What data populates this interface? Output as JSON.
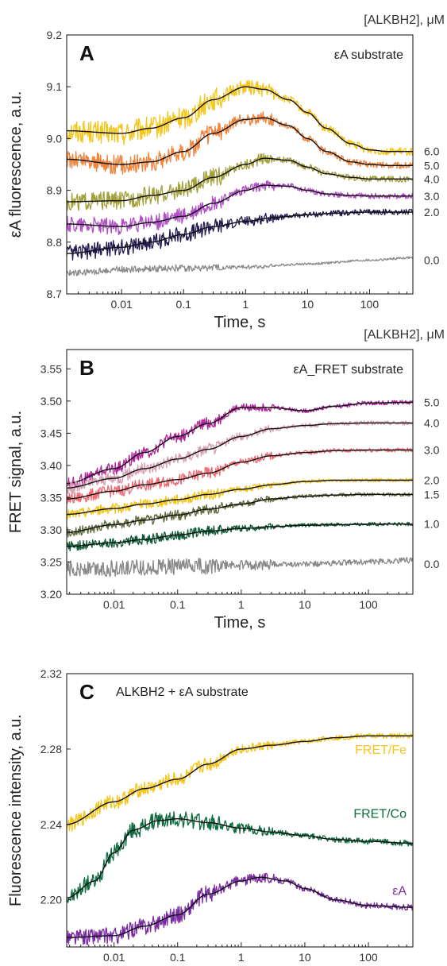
{
  "chart_data": [
    {
      "type": "line",
      "panel": "A",
      "subtitle": "εA substrate",
      "legend_header": "[ALKBH2], μM",
      "xlabel": "Time, s",
      "ylabel": "εA fluorescence, a.u.",
      "xscale": "log",
      "xlim": [
        0.0013,
        500
      ],
      "ylim": [
        8.7,
        9.2
      ],
      "xticks": [
        "0.01",
        "0.1",
        "1",
        "10",
        "100"
      ],
      "yticks": [
        "8.7",
        "8.8",
        "8.9",
        "9.0",
        "9.1",
        "9.2"
      ],
      "series": [
        {
          "name": "6.0",
          "color": "#f5c518",
          "label_y": 8.975,
          "noise": 0.014,
          "points": [
            [
              0.0013,
              9.015
            ],
            [
              0.01,
              9.01
            ],
            [
              0.03,
              9.02
            ],
            [
              0.1,
              9.04
            ],
            [
              0.3,
              9.075
            ],
            [
              1,
              9.1
            ],
            [
              2,
              9.095
            ],
            [
              5,
              9.075
            ],
            [
              10,
              9.05
            ],
            [
              20,
              9.02
            ],
            [
              50,
              8.99
            ],
            [
              100,
              8.978
            ],
            [
              200,
              8.975
            ],
            [
              500,
              8.975
            ]
          ]
        },
        {
          "name": "5.0",
          "color": "#f0843c",
          "label_y": 8.948,
          "noise": 0.012,
          "points": [
            [
              0.0013,
              8.96
            ],
            [
              0.01,
              8.95
            ],
            [
              0.03,
              8.955
            ],
            [
              0.1,
              8.975
            ],
            [
              0.3,
              9.01
            ],
            [
              1,
              9.037
            ],
            [
              2,
              9.04
            ],
            [
              5,
              9.025
            ],
            [
              10,
              9.0
            ],
            [
              20,
              8.975
            ],
            [
              50,
              8.955
            ],
            [
              100,
              8.95
            ],
            [
              200,
              8.948
            ],
            [
              500,
              8.948
            ]
          ]
        },
        {
          "name": "4.0",
          "color": "#a3a03a",
          "label_y": 8.922,
          "noise": 0.011,
          "points": [
            [
              0.0013,
              8.878
            ],
            [
              0.01,
              8.88
            ],
            [
              0.03,
              8.89
            ],
            [
              0.1,
              8.9
            ],
            [
              0.3,
              8.925
            ],
            [
              1,
              8.95
            ],
            [
              2,
              8.962
            ],
            [
              5,
              8.958
            ],
            [
              10,
              8.945
            ],
            [
              20,
              8.932
            ],
            [
              50,
              8.925
            ],
            [
              100,
              8.922
            ],
            [
              500,
              8.922
            ]
          ]
        },
        {
          "name": "3.0",
          "color": "#b04fc6",
          "label_y": 8.889,
          "noise": 0.01,
          "points": [
            [
              0.0013,
              8.835
            ],
            [
              0.01,
              8.83
            ],
            [
              0.03,
              8.838
            ],
            [
              0.1,
              8.85
            ],
            [
              0.3,
              8.875
            ],
            [
              1,
              8.9
            ],
            [
              2,
              8.91
            ],
            [
              5,
              8.908
            ],
            [
              10,
              8.9
            ],
            [
              20,
              8.893
            ],
            [
              50,
              8.89
            ],
            [
              100,
              8.889
            ],
            [
              500,
              8.889
            ]
          ]
        },
        {
          "name": "2.0",
          "color": "#231a52",
          "label_y": 8.858,
          "noise": 0.01,
          "points": [
            [
              0.0013,
              8.778
            ],
            [
              0.01,
              8.79
            ],
            [
              0.03,
              8.8
            ],
            [
              0.1,
              8.815
            ],
            [
              0.3,
              8.83
            ],
            [
              1,
              8.84
            ],
            [
              3,
              8.848
            ],
            [
              10,
              8.853
            ],
            [
              30,
              8.856
            ],
            [
              100,
              8.858
            ],
            [
              500,
              8.858
            ]
          ]
        },
        {
          "name": "0.0",
          "color": "#8a8a8a",
          "label_y": 8.765,
          "noise": 0.004,
          "no_fit": true,
          "points": [
            [
              0.0013,
              8.74
            ],
            [
              0.01,
              8.747
            ],
            [
              0.1,
              8.75
            ],
            [
              1,
              8.752
            ],
            [
              10,
              8.758
            ],
            [
              100,
              8.765
            ],
            [
              500,
              8.77
            ]
          ]
        }
      ]
    },
    {
      "type": "line",
      "panel": "B",
      "subtitle": "εA_FRET substrate",
      "legend_header": "[ALKBH2], μM",
      "xlabel": "Time, s",
      "ylabel": "FRET signal, a.u.",
      "xscale": "log",
      "xlim": [
        0.0018,
        500
      ],
      "ylim": [
        3.2,
        3.58
      ],
      "xticks": [
        "0.01",
        "0.1",
        "1",
        "10",
        "100"
      ],
      "yticks": [
        "3.20",
        "3.25",
        "3.30",
        "3.35",
        "3.40",
        "3.45",
        "3.50",
        "3.55"
      ],
      "series": [
        {
          "name": "5.0",
          "color": "#b0269a",
          "label_y": 3.498,
          "noise": 0.006,
          "points": [
            [
              0.0018,
              3.372
            ],
            [
              0.01,
              3.395
            ],
            [
              0.03,
              3.42
            ],
            [
              0.1,
              3.445
            ],
            [
              0.3,
              3.465
            ],
            [
              1,
              3.49
            ],
            [
              3,
              3.49
            ],
            [
              10,
              3.485
            ],
            [
              30,
              3.492
            ],
            [
              100,
              3.497
            ],
            [
              500,
              3.498
            ]
          ]
        },
        {
          "name": "4.0",
          "color": "#d9a0b4",
          "label_y": 3.466,
          "noise": 0.006,
          "points": [
            [
              0.0018,
              3.365
            ],
            [
              0.01,
              3.38
            ],
            [
              0.03,
              3.395
            ],
            [
              0.1,
              3.41
            ],
            [
              0.3,
              3.425
            ],
            [
              1,
              3.445
            ],
            [
              3,
              3.457
            ],
            [
              10,
              3.462
            ],
            [
              30,
              3.465
            ],
            [
              100,
              3.466
            ],
            [
              500,
              3.466
            ]
          ]
        },
        {
          "name": "3.0",
          "color": "#f06a72",
          "label_y": 3.424,
          "noise": 0.006,
          "points": [
            [
              0.0018,
              3.348
            ],
            [
              0.01,
              3.36
            ],
            [
              0.03,
              3.37
            ],
            [
              0.1,
              3.378
            ],
            [
              0.3,
              3.388
            ],
            [
              1,
              3.405
            ],
            [
              3,
              3.415
            ],
            [
              10,
              3.42
            ],
            [
              30,
              3.423
            ],
            [
              100,
              3.424
            ],
            [
              500,
              3.424
            ]
          ]
        },
        {
          "name": "2.0",
          "color": "#f5c518",
          "label_y": 3.377,
          "noise": 0.005,
          "points": [
            [
              0.0018,
              3.324
            ],
            [
              0.01,
              3.333
            ],
            [
              0.03,
              3.34
            ],
            [
              0.1,
              3.347
            ],
            [
              0.3,
              3.355
            ],
            [
              1,
              3.363
            ],
            [
              3,
              3.37
            ],
            [
              10,
              3.375
            ],
            [
              30,
              3.377
            ],
            [
              100,
              3.377
            ],
            [
              500,
              3.377
            ]
          ]
        },
        {
          "name": "1.5",
          "color": "#5f6b3a",
          "label_y": 3.355,
          "noise": 0.005,
          "points": [
            [
              0.0018,
              3.296
            ],
            [
              0.01,
              3.308
            ],
            [
              0.03,
              3.315
            ],
            [
              0.1,
              3.323
            ],
            [
              0.3,
              3.332
            ],
            [
              1,
              3.34
            ],
            [
              3,
              3.348
            ],
            [
              10,
              3.352
            ],
            [
              30,
              3.354
            ],
            [
              100,
              3.355
            ],
            [
              500,
              3.355
            ]
          ]
        },
        {
          "name": "1.0",
          "color": "#0d5c36",
          "label_y": 3.309,
          "noise": 0.005,
          "points": [
            [
              0.0018,
              3.274
            ],
            [
              0.01,
              3.28
            ],
            [
              0.03,
              3.285
            ],
            [
              0.1,
              3.292
            ],
            [
              0.3,
              3.298
            ],
            [
              1,
              3.302
            ],
            [
              3,
              3.305
            ],
            [
              10,
              3.307
            ],
            [
              30,
              3.308
            ],
            [
              100,
              3.309
            ],
            [
              500,
              3.309
            ]
          ]
        },
        {
          "name": "0.0",
          "color": "#888888",
          "label_y": 3.247,
          "noise": 0.008,
          "no_fit": true,
          "points": [
            [
              0.0018,
              3.24
            ],
            [
              0.01,
              3.24
            ],
            [
              0.1,
              3.243
            ],
            [
              1,
              3.245
            ],
            [
              10,
              3.247
            ],
            [
              100,
              3.25
            ],
            [
              500,
              3.253
            ]
          ]
        }
      ]
    },
    {
      "type": "line",
      "panel": "C",
      "subtitle": "ALKBH2 + εA substrate",
      "xlabel": "Time, s",
      "ylabel": "Fluorescence intensity, a.u.",
      "xscale": "log",
      "xlim": [
        0.0018,
        500
      ],
      "ylim": [
        2.175,
        2.32
      ],
      "xticks": [
        "0.01",
        "0.1",
        "1",
        "10",
        "100"
      ],
      "yticks": [
        "2.20",
        "2.24",
        "2.28",
        "2.32"
      ],
      "series": [
        {
          "name": "FRET/Fe",
          "color": "#f5c518",
          "label_y": 2.275,
          "noise": 0.0025,
          "points": [
            [
              0.0018,
              2.24
            ],
            [
              0.01,
              2.252
            ],
            [
              0.03,
              2.259
            ],
            [
              0.1,
              2.264
            ],
            [
              0.3,
              2.272
            ],
            [
              1,
              2.28
            ],
            [
              3,
              2.282
            ],
            [
              10,
              2.284
            ],
            [
              30,
              2.286
            ],
            [
              100,
              2.287
            ],
            [
              500,
              2.287
            ]
          ]
        },
        {
          "name": "FRET/Co",
          "color": "#0d6b3f",
          "label_y": 2.241,
          "noise": 0.0028,
          "points": [
            [
              0.0018,
              2.201
            ],
            [
              0.005,
              2.21
            ],
            [
              0.01,
              2.225
            ],
            [
              0.02,
              2.237
            ],
            [
              0.05,
              2.242
            ],
            [
              0.1,
              2.243
            ],
            [
              0.3,
              2.241
            ],
            [
              1,
              2.238
            ],
            [
              3,
              2.236
            ],
            [
              10,
              2.234
            ],
            [
              30,
              2.232
            ],
            [
              100,
              2.231
            ],
            [
              500,
              2.23
            ]
          ]
        },
        {
          "name": "εA",
          "color": "#7a2ba3",
          "label_y": 2.2,
          "noise": 0.0028,
          "points": [
            [
              0.0018,
              2.18
            ],
            [
              0.01,
              2.181
            ],
            [
              0.03,
              2.186
            ],
            [
              0.1,
              2.192
            ],
            [
              0.3,
              2.203
            ],
            [
              1,
              2.21
            ],
            [
              2,
              2.212
            ],
            [
              5,
              2.21
            ],
            [
              10,
              2.206
            ],
            [
              30,
              2.2
            ],
            [
              100,
              2.197
            ],
            [
              500,
              2.196
            ]
          ]
        }
      ]
    }
  ]
}
